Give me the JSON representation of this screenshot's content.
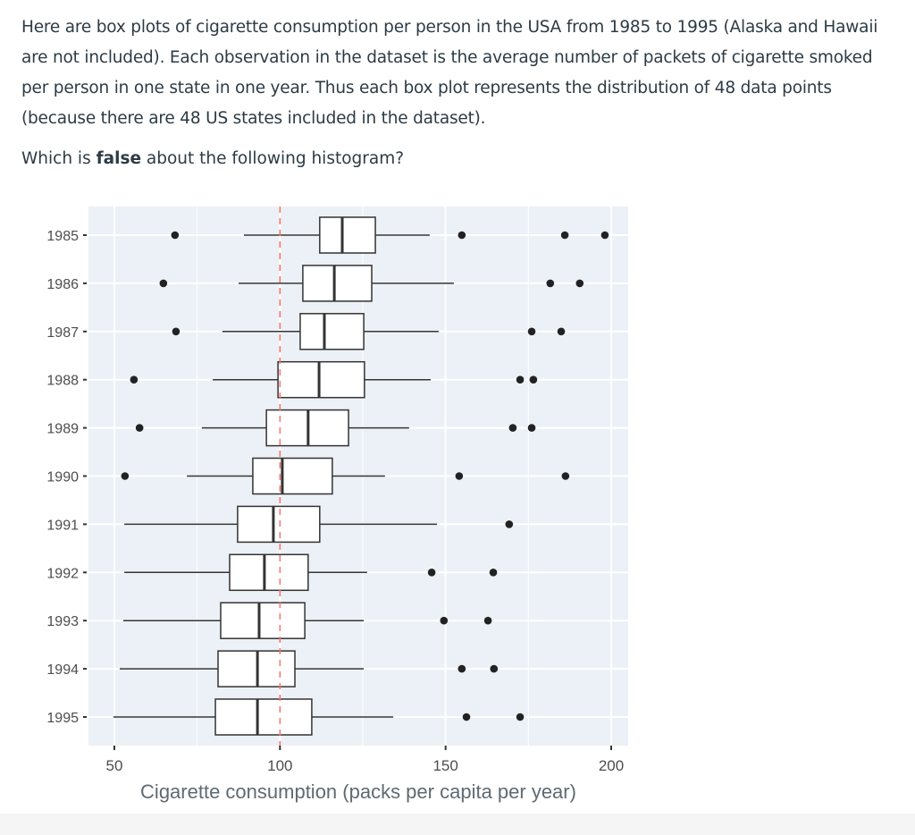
{
  "question": {
    "intro": "Here are box plots of cigarette consumption per person in the USA from 1985 to 1995 (Alaska and Hawaii are not included). Each observation in the dataset is the average number of packets of cigarette smoked per person in one state in one year. Thus each box plot represents the distribution of 48 data points (because there are 48 US states included in the dataset).",
    "prompt_pre": "Which is ",
    "prompt_bold": "false",
    "prompt_post": " about the following histogram?"
  },
  "chart_data": {
    "type": "boxplot",
    "orientation": "horizontal",
    "xlabel": "Cigarette consumption (packs per capita per year)",
    "ylabel": "",
    "xlim": [
      46,
      205
    ],
    "xticks": [
      50,
      100,
      150,
      200
    ],
    "reference_line": {
      "x": 100,
      "style": "dashed",
      "color": "#f8766d"
    },
    "colors": {
      "panel": "#ebf1f6",
      "grid": "#ffffff",
      "box": "#333333",
      "point": "#222222",
      "axis_text": "#4d4d4d"
    },
    "categories": [
      "1985",
      "1986",
      "1987",
      "1988",
      "1989",
      "1990",
      "1991",
      "1992",
      "1993",
      "1994",
      "1995"
    ],
    "boxes": [
      {
        "year": "1985",
        "whisker_low": 89.1,
        "q1": 112.0,
        "median": 118.8,
        "q3": 128.8,
        "whisker_high": 145.2,
        "outliers": [
          68.3,
          154.9,
          186.0,
          198.1
        ]
      },
      {
        "year": "1986",
        "whisker_low": 87.5,
        "q1": 106.9,
        "median": 116.4,
        "q3": 127.7,
        "whisker_high": 152.5,
        "outliers": [
          64.8,
          181.6,
          190.5
        ]
      },
      {
        "year": "1987",
        "whisker_low": 82.6,
        "q1": 106.1,
        "median": 113.4,
        "q3": 125.3,
        "whisker_high": 147.9,
        "outliers": [
          68.6,
          176.0,
          184.9
        ]
      },
      {
        "year": "1988",
        "whisker_low": 79.7,
        "q1": 99.4,
        "median": 111.8,
        "q3": 125.5,
        "whisker_high": 145.5,
        "outliers": [
          55.9,
          172.5,
          176.5
        ]
      },
      {
        "year": "1989",
        "whisker_low": 76.4,
        "q1": 95.9,
        "median": 108.5,
        "q3": 120.7,
        "whisker_high": 139.0,
        "outliers": [
          57.6,
          170.3,
          176.0
        ]
      },
      {
        "year": "1990",
        "whisker_low": 71.9,
        "q1": 91.8,
        "median": 100.7,
        "q3": 115.8,
        "whisker_high": 131.7,
        "outliers": [
          53.2,
          154.1,
          186.2
        ]
      },
      {
        "year": "1991",
        "whisker_low": 53.0,
        "q1": 87.2,
        "median": 98.0,
        "q3": 112.0,
        "whisker_high": 147.4,
        "outliers": [
          169.2
        ]
      },
      {
        "year": "1992",
        "whisker_low": 53.0,
        "q1": 84.8,
        "median": 95.3,
        "q3": 108.5,
        "whisker_high": 126.3,
        "outliers": [
          145.8,
          164.4
        ]
      },
      {
        "year": "1993",
        "whisker_low": 52.7,
        "q1": 82.1,
        "median": 93.7,
        "q3": 107.5,
        "whisker_high": 125.3,
        "outliers": [
          149.5,
          162.8
        ]
      },
      {
        "year": "1994",
        "whisker_low": 51.6,
        "q1": 81.3,
        "median": 93.2,
        "q3": 104.5,
        "whisker_high": 125.3,
        "outliers": [
          154.9,
          164.6
        ]
      },
      {
        "year": "1995",
        "whisker_low": 49.7,
        "q1": 80.5,
        "median": 93.2,
        "q3": 109.6,
        "whisker_high": 134.2,
        "outliers": [
          156.3,
          172.5
        ]
      }
    ]
  }
}
